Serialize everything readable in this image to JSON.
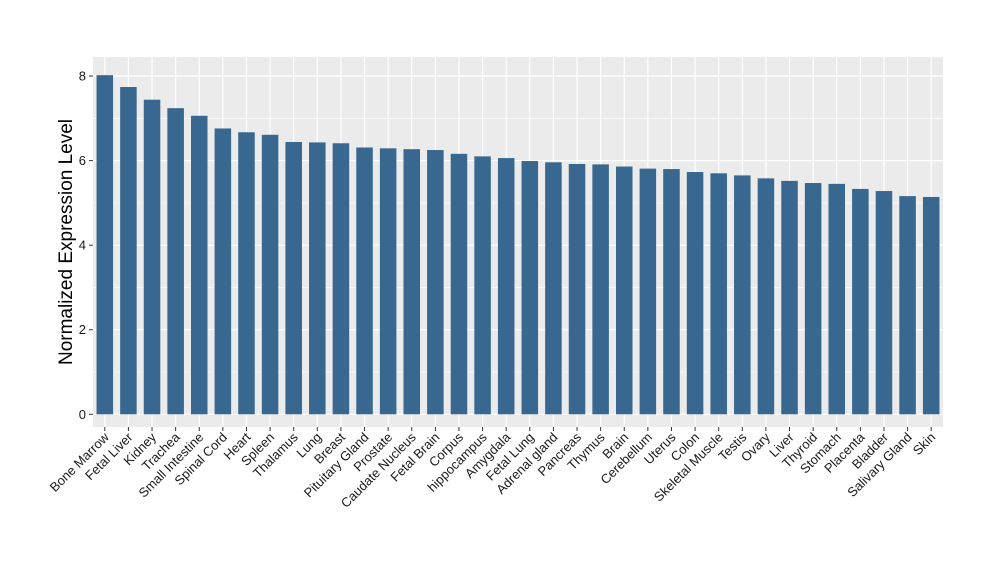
{
  "chart_data": {
    "type": "bar",
    "title": "",
    "xlabel": "",
    "ylabel": "Normalized Expression Level",
    "ylim": [
      -0.3,
      8.45
    ],
    "yticks": [
      0,
      2,
      4,
      6,
      8
    ],
    "grid": true,
    "legend": "none",
    "bar_color": "#386890",
    "panel_color": "#EBEBEB",
    "categories": [
      "Bone Marrow",
      "Fetal Liver",
      "Kidney",
      "Trachea",
      "Small Intestine",
      "Spinal Cord",
      "Heart",
      "Spleen",
      "Thalamus",
      "Lung",
      "Breast",
      "Pituitary Gland",
      "Prostate",
      "Caudate Nucleus",
      "Fetal Brain",
      "Corpus",
      "hippocampus",
      "Amygdala",
      "Fetal Lung",
      "Adrenal gland",
      "Pancreas",
      "Thymus",
      "Brain",
      "Cerebellum",
      "Uterus",
      "Colon",
      "Skeletal Muscle",
      "Testis",
      "Ovary",
      "Liver",
      "Thyroid",
      "Stomach",
      "Placenta",
      "Bladder",
      "Salivary Gland",
      "Skin"
    ],
    "values": [
      8.02,
      7.74,
      7.44,
      7.24,
      7.06,
      6.76,
      6.67,
      6.61,
      6.44,
      6.43,
      6.41,
      6.31,
      6.29,
      6.27,
      6.25,
      6.16,
      6.1,
      6.06,
      5.99,
      5.96,
      5.92,
      5.91,
      5.86,
      5.81,
      5.8,
      5.73,
      5.7,
      5.65,
      5.58,
      5.52,
      5.47,
      5.45,
      5.33,
      5.28,
      5.16,
      5.14
    ]
  }
}
